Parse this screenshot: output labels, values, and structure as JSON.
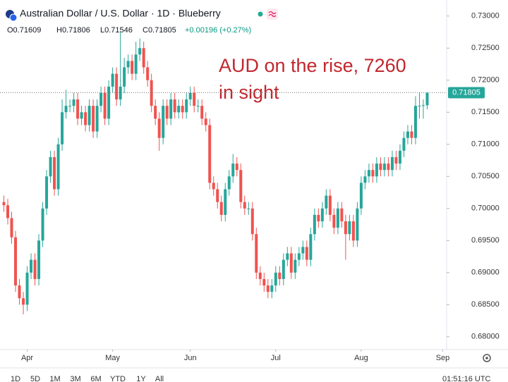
{
  "chart_data": {
    "type": "candlestick",
    "title": "Australian Dollar / U.S. Dollar · 1D · Blueberry",
    "header": {
      "open": "O0.71609",
      "high": "H0.71806",
      "low": "L0.71546",
      "close": "C0.71805",
      "change": "+0.00196 (+0.27%)"
    },
    "annotation": [
      "AUD on the rise, 7260",
      "in sight"
    ],
    "last_price_label": "0.71805",
    "up_color": "#26a69a",
    "down_color": "#ef5350",
    "grid": false,
    "xlim": [
      -1,
      114
    ],
    "xticks": [
      {
        "value": 6,
        "label": "Apr"
      },
      {
        "value": 28,
        "label": "May"
      },
      {
        "value": 48,
        "label": "Jun"
      },
      {
        "value": 70,
        "label": "Jul"
      },
      {
        "value": 92,
        "label": "Aug"
      },
      {
        "value": 113,
        "label": "Sep"
      }
    ],
    "ylim": [
      0.678,
      0.7325
    ],
    "yticks": [
      {
        "value": 0.73,
        "label": "0.73000"
      },
      {
        "value": 0.725,
        "label": "0.72500"
      },
      {
        "value": 0.72,
        "label": "0.72000"
      },
      {
        "value": 0.715,
        "label": "0.71500"
      },
      {
        "value": 0.71,
        "label": "0.71000"
      },
      {
        "value": 0.705,
        "label": "0.70500"
      },
      {
        "value": 0.7,
        "label": "0.70000"
      },
      {
        "value": 0.695,
        "label": "0.69500"
      },
      {
        "value": 0.69,
        "label": "0.69000"
      },
      {
        "value": 0.685,
        "label": "0.68500"
      },
      {
        "value": 0.68,
        "label": "0.68000"
      }
    ],
    "open": [
      0.701,
      0.7005,
      0.6985,
      0.6955,
      0.688,
      0.686,
      0.685,
      0.69,
      0.692,
      0.689,
      0.695,
      0.7,
      0.705,
      0.708,
      0.703,
      0.71,
      0.715,
      0.716,
      0.716,
      0.717,
      0.714,
      0.715,
      0.713,
      0.716,
      0.712,
      0.716,
      0.718,
      0.714,
      0.719,
      0.721,
      0.717,
      0.719,
      0.722,
      0.723,
      0.721,
      0.724,
      0.725,
      0.722,
      0.72,
      0.716,
      0.714,
      0.711,
      0.716,
      0.714,
      0.717,
      0.715,
      0.716,
      0.715,
      0.717,
      0.718,
      0.716,
      0.716,
      0.714,
      0.713,
      0.704,
      0.703,
      0.701,
      0.699,
      0.703,
      0.705,
      0.707,
      0.706,
      0.701,
      0.7,
      0.7,
      0.696,
      0.69,
      0.689,
      0.688,
      0.687,
      0.688,
      0.69,
      0.689,
      0.692,
      0.693,
      0.69,
      0.692,
      0.693,
      0.694,
      0.692,
      0.696,
      0.699,
      0.698,
      0.7,
      0.702,
      0.699,
      0.697,
      0.7,
      0.698,
      0.696,
      0.698,
      0.695,
      0.7,
      0.704,
      0.705,
      0.706,
      0.705,
      0.707,
      0.706,
      0.707,
      0.706,
      0.708,
      0.707,
      0.709,
      0.711,
      0.712,
      0.711,
      0.716,
      0.716,
      0.71609
    ],
    "high": [
      0.702,
      0.7015,
      0.6995,
      0.6965,
      0.689,
      0.687,
      0.691,
      0.693,
      0.693,
      0.696,
      0.701,
      0.706,
      0.709,
      0.709,
      0.711,
      0.717,
      0.7185,
      0.717,
      0.718,
      0.718,
      0.716,
      0.716,
      0.717,
      0.717,
      0.717,
      0.719,
      0.719,
      0.72,
      0.722,
      0.722,
      0.7275,
      0.7235,
      0.724,
      0.724,
      0.726,
      0.7265,
      0.726,
      0.723,
      0.721,
      0.717,
      0.715,
      0.717,
      0.717,
      0.718,
      0.718,
      0.717,
      0.717,
      0.718,
      0.719,
      0.719,
      0.717,
      0.717,
      0.715,
      0.714,
      0.705,
      0.704,
      0.702,
      0.704,
      0.706,
      0.7085,
      0.708,
      0.707,
      0.702,
      0.701,
      0.701,
      0.697,
      0.691,
      0.69,
      0.689,
      0.689,
      0.691,
      0.691,
      0.693,
      0.694,
      0.694,
      0.693,
      0.694,
      0.695,
      0.695,
      0.697,
      0.7,
      0.7,
      0.701,
      0.703,
      0.703,
      0.7,
      0.701,
      0.701,
      0.699,
      0.699,
      0.699,
      0.701,
      0.705,
      0.706,
      0.707,
      0.707,
      0.708,
      0.708,
      0.708,
      0.708,
      0.709,
      0.709,
      0.71,
      0.712,
      0.713,
      0.713,
      0.7175,
      0.718,
      0.717,
      0.71806
    ],
    "low": [
      0.6995,
      0.6975,
      0.6945,
      0.687,
      0.685,
      0.6835,
      0.684,
      0.689,
      0.688,
      0.688,
      0.694,
      0.699,
      0.704,
      0.702,
      0.702,
      0.709,
      0.714,
      0.715,
      0.715,
      0.713,
      0.713,
      0.712,
      0.712,
      0.711,
      0.711,
      0.715,
      0.713,
      0.713,
      0.718,
      0.716,
      0.716,
      0.718,
      0.721,
      0.72,
      0.72,
      0.723,
      0.721,
      0.719,
      0.715,
      0.713,
      0.709,
      0.71,
      0.713,
      0.713,
      0.714,
      0.714,
      0.714,
      0.714,
      0.716,
      0.715,
      0.715,
      0.713,
      0.712,
      0.703,
      0.702,
      0.7,
      0.698,
      0.698,
      0.702,
      0.704,
      0.705,
      0.7,
      0.699,
      0.699,
      0.695,
      0.689,
      0.688,
      0.687,
      0.686,
      0.686,
      0.687,
      0.688,
      0.688,
      0.691,
      0.689,
      0.689,
      0.691,
      0.692,
      0.691,
      0.691,
      0.695,
      0.697,
      0.697,
      0.699,
      0.698,
      0.696,
      0.696,
      0.697,
      0.692,
      0.695,
      0.694,
      0.694,
      0.699,
      0.703,
      0.704,
      0.704,
      0.704,
      0.705,
      0.705,
      0.705,
      0.705,
      0.706,
      0.706,
      0.708,
      0.71,
      0.71,
      0.71,
      0.714,
      0.714,
      0.71546
    ],
    "close": [
      0.7005,
      0.6985,
      0.6955,
      0.688,
      0.686,
      0.685,
      0.69,
      0.692,
      0.689,
      0.695,
      0.7,
      0.705,
      0.708,
      0.703,
      0.71,
      0.715,
      0.716,
      0.716,
      0.717,
      0.714,
      0.715,
      0.713,
      0.716,
      0.712,
      0.716,
      0.718,
      0.714,
      0.719,
      0.721,
      0.717,
      0.719,
      0.722,
      0.723,
      0.721,
      0.724,
      0.725,
      0.722,
      0.72,
      0.716,
      0.714,
      0.711,
      0.716,
      0.714,
      0.717,
      0.715,
      0.716,
      0.715,
      0.717,
      0.718,
      0.716,
      0.716,
      0.714,
      0.713,
      0.704,
      0.703,
      0.701,
      0.699,
      0.703,
      0.705,
      0.707,
      0.706,
      0.701,
      0.7,
      0.7,
      0.696,
      0.69,
      0.689,
      0.688,
      0.687,
      0.688,
      0.69,
      0.689,
      0.692,
      0.693,
      0.69,
      0.692,
      0.693,
      0.694,
      0.692,
      0.696,
      0.699,
      0.698,
      0.7,
      0.702,
      0.699,
      0.697,
      0.7,
      0.698,
      0.696,
      0.698,
      0.695,
      0.7,
      0.704,
      0.705,
      0.706,
      0.705,
      0.707,
      0.706,
      0.707,
      0.706,
      0.708,
      0.707,
      0.709,
      0.711,
      0.712,
      0.711,
      0.716,
      0.716,
      0.7161,
      0.71805
    ],
    "range_buttons": [
      "1D",
      "5D",
      "1M",
      "3M",
      "6M",
      "YTD",
      "1Y",
      "All"
    ],
    "clock": "01:51:16 UTC"
  }
}
